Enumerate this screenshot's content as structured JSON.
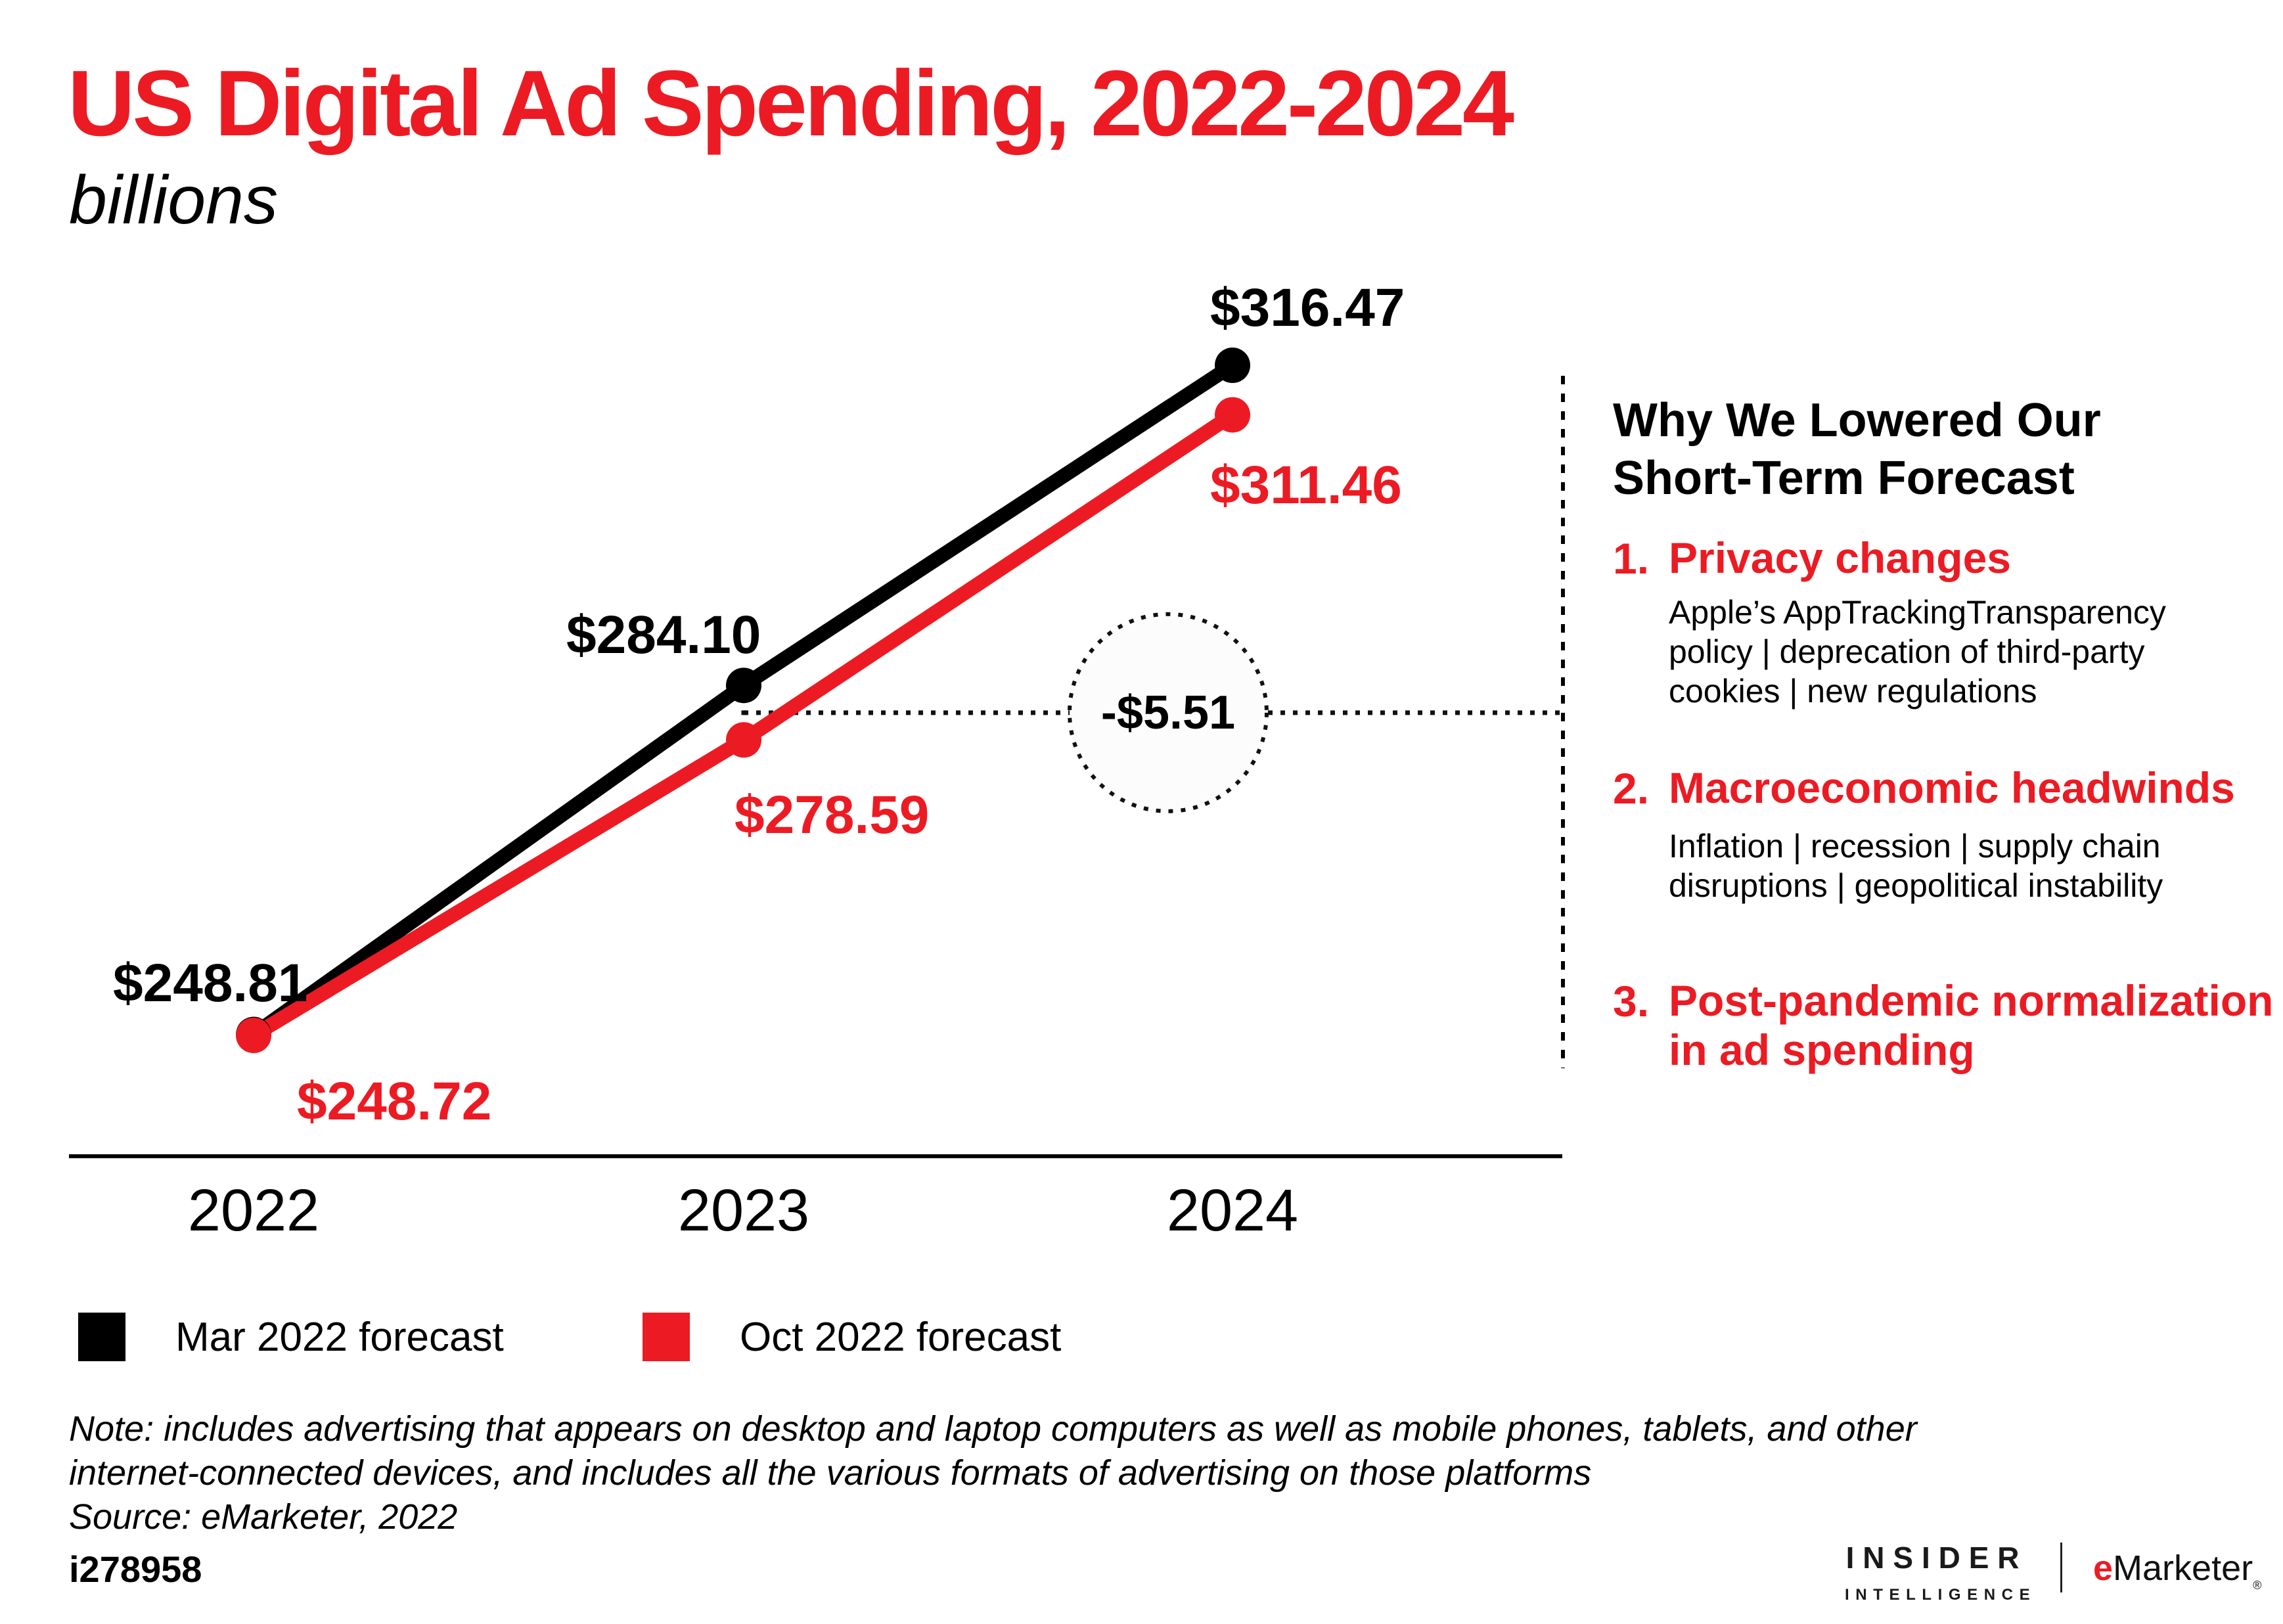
{
  "accent_color": "#ec1b23",
  "header": {
    "title": "US Digital Ad Spending, 2022-2024",
    "subtitle": "billions"
  },
  "chart_data": {
    "type": "line",
    "title": "US Digital Ad Spending, 2022-2024",
    "units": "billions",
    "categories": [
      "2022",
      "2023",
      "2024"
    ],
    "series": [
      {
        "name": "Mar 2022 forecast",
        "color": "#000000",
        "values": [
          248.81,
          284.1,
          316.47
        ],
        "point_labels": [
          "$248.81",
          "$284.10",
          "$316.47"
        ]
      },
      {
        "name": "Oct 2022 forecast",
        "color": "#ec1b23",
        "values": [
          248.72,
          278.59,
          311.46
        ],
        "point_labels": [
          "$248.72",
          "$278.59",
          "$311.46"
        ]
      }
    ],
    "annotation": {
      "label": "-$5.51",
      "category": "2023"
    },
    "ylim": [
      240,
      330
    ],
    "grid": false,
    "legend_position": "bottom-left"
  },
  "side_panel": {
    "heading_lines": [
      "Why We Lowered Our",
      "Short-Term Forecast"
    ],
    "items": [
      {
        "number": "1.",
        "title_lines": [
          "Privacy changes",
          ""
        ],
        "body_lines": [
          "Apple’s AppTrackingTransparency",
          "policy | deprecation of third-party",
          "cookies | new regulations"
        ]
      },
      {
        "number": "2.",
        "title_lines": [
          "Macroeconomic headwinds",
          ""
        ],
        "body_lines": [
          "Inflation | recession | supply chain",
          "disruptions | geopolitical instability",
          ""
        ]
      },
      {
        "number": "3.",
        "title_lines": [
          "Post-pandemic normalization",
          "in ad spending"
        ],
        "body_lines": [
          "",
          "",
          ""
        ]
      }
    ]
  },
  "footer": {
    "note_lines": [
      "Note: includes advertising that appears on desktop and laptop computers as well as mobile phones, tablets, and other",
      "internet-connected devices, and includes all the various formats of advertising on those platforms"
    ],
    "source": "Source: eMarketer, 2022",
    "chart_id": "i278958",
    "brand": {
      "name_line1": "INSIDER",
      "name_line2": "INTELLIGENCE",
      "partner_first_letter": "e",
      "partner_rest": "Marketer",
      "registered_mark": "®"
    }
  }
}
